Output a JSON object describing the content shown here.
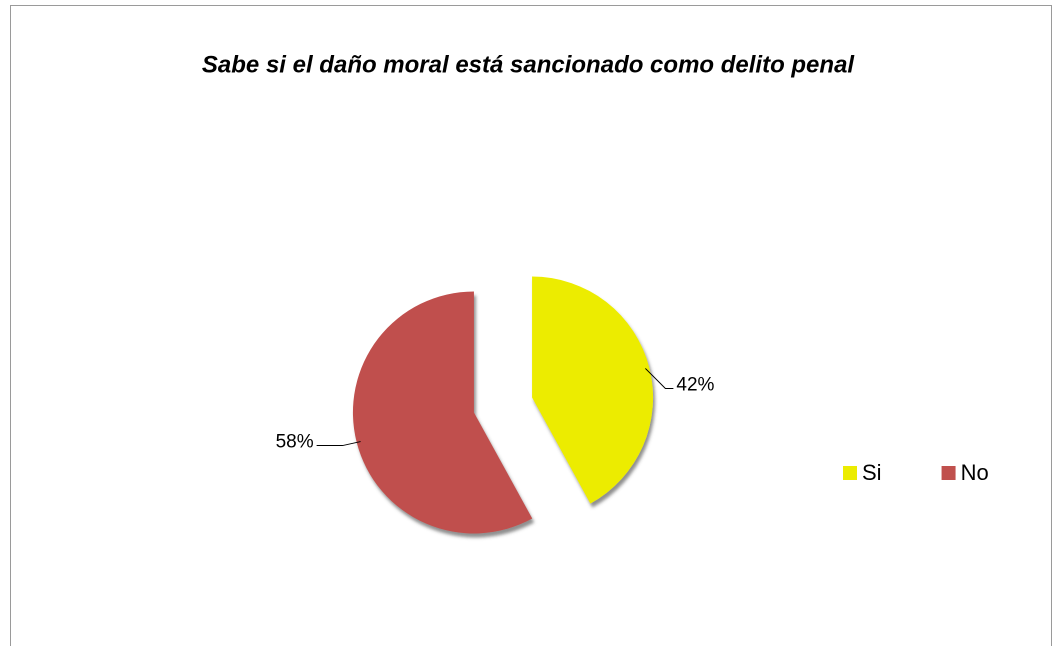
{
  "chart_data": {
    "type": "pie",
    "title": "Sabe si el daño moral está sancionado como delito penal",
    "categories": [
      "Si",
      "No"
    ],
    "values": [
      42,
      58
    ],
    "value_labels": [
      "42%",
      "58%"
    ],
    "colors": [
      "#ecec00",
      "#c0504d"
    ],
    "legend": "right"
  }
}
